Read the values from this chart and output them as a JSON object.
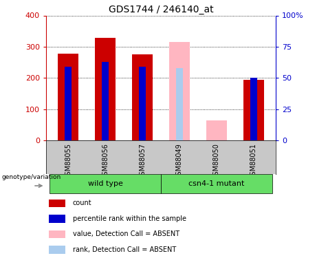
{
  "title": "GDS1744 / 246140_at",
  "samples": [
    "GSM88055",
    "GSM88056",
    "GSM88057",
    "GSM88049",
    "GSM88050",
    "GSM88051"
  ],
  "count_values": [
    278,
    328,
    276,
    0,
    0,
    195
  ],
  "rank_values": [
    59,
    63,
    59,
    0,
    0,
    50
  ],
  "absent_count_values": [
    0,
    0,
    0,
    315,
    65,
    0
  ],
  "absent_rank_values": [
    0,
    0,
    0,
    58,
    0,
    0
  ],
  "groups": [
    "wild type",
    "wild type",
    "wild type",
    "csn4-1 mutant",
    "csn4-1 mutant",
    "csn4-1 mutant"
  ],
  "color_red": "#CC0000",
  "color_blue": "#0000CC",
  "color_pink": "#FFB6C1",
  "color_light_blue": "#AACCEE",
  "ylim_left": [
    0,
    400
  ],
  "ylim_right": [
    0,
    100
  ],
  "yticks_left": [
    0,
    100,
    200,
    300,
    400
  ],
  "yticks_right": [
    0,
    25,
    50,
    75,
    100
  ],
  "yticklabels_right": [
    "0",
    "25",
    "50",
    "75",
    "100%"
  ],
  "background_label": "#C8C8C8",
  "green_color": "#66DD66",
  "legend_items": [
    {
      "label": "count",
      "color": "#CC0000"
    },
    {
      "label": "percentile rank within the sample",
      "color": "#0000CC"
    },
    {
      "label": "value, Detection Call = ABSENT",
      "color": "#FFB6C1"
    },
    {
      "label": "rank, Detection Call = ABSENT",
      "color": "#AACCEE"
    }
  ]
}
